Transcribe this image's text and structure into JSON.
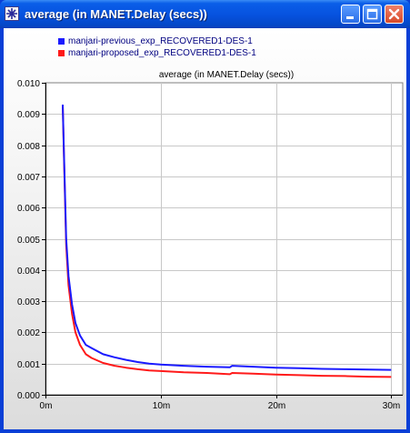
{
  "window": {
    "title": "average (in MANET.Delay (secs))",
    "buttons": [
      "minimize",
      "maximize",
      "close"
    ]
  },
  "legend": [
    {
      "label": "manjari-previous_exp_RECOVERED1-DES-1",
      "color": "#1a1aff"
    },
    {
      "label": "manjari-proposed_exp_RECOVERED1-DES-1",
      "color": "#ff1a1a"
    }
  ],
  "chart_data": {
    "type": "line",
    "title": "average (in MANET.Delay (secs))",
    "xlabel": "",
    "ylabel": "",
    "xlim": [
      0,
      31
    ],
    "ylim": [
      0,
      0.01
    ],
    "x_ticks": [
      "0m",
      "10m",
      "20m",
      "30m"
    ],
    "x_tick_values": [
      0,
      10,
      20,
      30
    ],
    "y_ticks": [
      "0.000",
      "0.001",
      "0.002",
      "0.003",
      "0.004",
      "0.005",
      "0.006",
      "0.007",
      "0.008",
      "0.009",
      "0.010"
    ],
    "y_tick_values": [
      0,
      0.001,
      0.002,
      0.003,
      0.004,
      0.005,
      0.006,
      0.007,
      0.008,
      0.009,
      0.01
    ],
    "grid": true,
    "series": [
      {
        "name": "manjari-previous_exp_RECOVERED1-DES-1",
        "color": "#1a1aff",
        "x": [
          1.5,
          1.6,
          1.8,
          2.0,
          2.3,
          2.6,
          3.0,
          3.5,
          4.0,
          5.0,
          6.0,
          7.0,
          8.0,
          9.0,
          10.0,
          12.0,
          14.0,
          16.0,
          16.2,
          18.0,
          20.0,
          22.0,
          24.0,
          26.0,
          28.0,
          30.0
        ],
        "values": [
          0.0093,
          0.0078,
          0.005,
          0.0038,
          0.0029,
          0.0023,
          0.0019,
          0.0016,
          0.0015,
          0.0013,
          0.0012,
          0.00112,
          0.00105,
          0.001,
          0.00097,
          0.00093,
          0.0009,
          0.00088,
          0.00093,
          0.0009,
          0.00087,
          0.00085,
          0.00083,
          0.00082,
          0.00081,
          0.0008
        ]
      },
      {
        "name": "manjari-proposed_exp_RECOVERED1-DES-1",
        "color": "#ff1a1a",
        "x": [
          1.5,
          1.6,
          1.8,
          2.0,
          2.3,
          2.6,
          3.0,
          3.5,
          4.0,
          5.0,
          6.0,
          7.0,
          8.0,
          9.0,
          10.0,
          12.0,
          14.0,
          16.0,
          16.2,
          18.0,
          20.0,
          22.0,
          24.0,
          26.0,
          28.0,
          30.0
        ],
        "values": [
          0.0093,
          0.0077,
          0.0048,
          0.0035,
          0.0026,
          0.002,
          0.0016,
          0.0013,
          0.00118,
          0.00102,
          0.00093,
          0.00087,
          0.00082,
          0.00078,
          0.00076,
          0.00072,
          0.0007,
          0.00066,
          0.0007,
          0.00068,
          0.00065,
          0.00063,
          0.00061,
          0.0006,
          0.00058,
          0.00057
        ]
      }
    ]
  }
}
